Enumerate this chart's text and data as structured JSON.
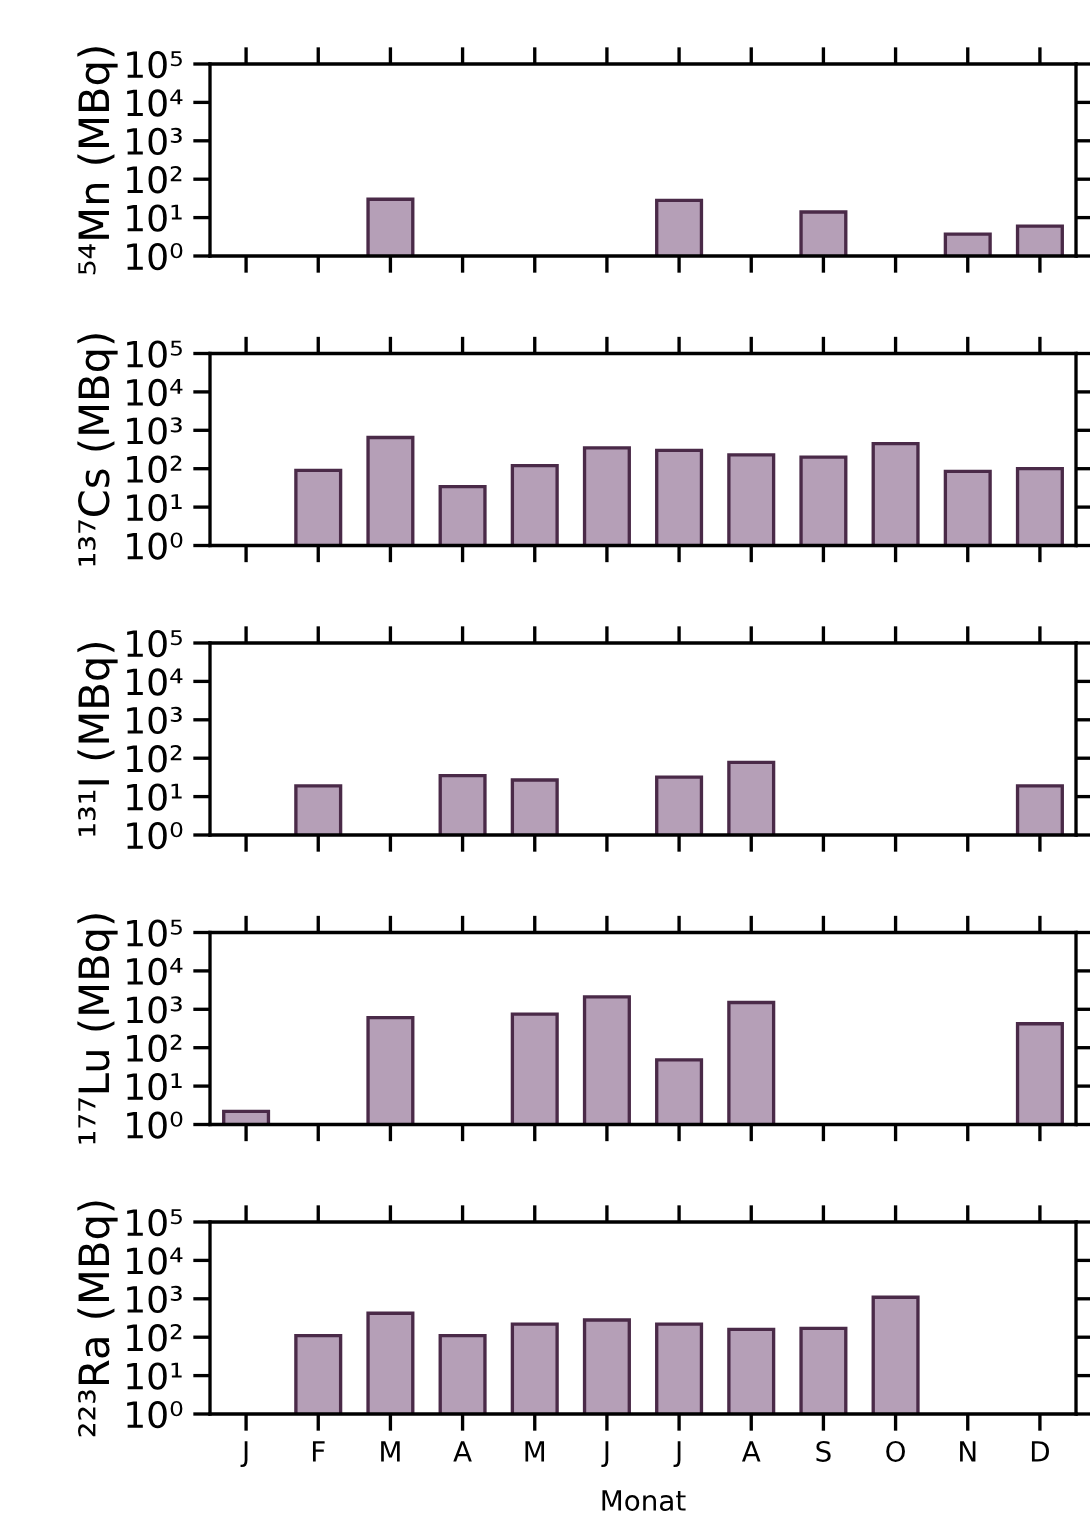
{
  "chart_data": [
    {
      "type": "bar",
      "ylabel": "⁵⁴Mn (MBq)",
      "log": "y",
      "categories": [
        null,
        null,
        null,
        null,
        null,
        null,
        null,
        null,
        null,
        null,
        null,
        null
      ],
      "values": [
        null,
        null,
        30,
        null,
        null,
        null,
        28,
        null,
        14,
        null,
        3.7,
        6
      ],
      "color": "#b59fb7",
      "ylim": [
        1,
        100000
      ],
      "yticks": [
        {
          "value": 1,
          "label": "10⁰"
        },
        {
          "value": 10,
          "label": "10¹"
        },
        {
          "value": 100,
          "label": "10²"
        },
        {
          "value": 1000,
          "label": "10³"
        },
        {
          "value": 10000,
          "label": "10⁴"
        },
        {
          "value": 100000,
          "label": "10⁵"
        }
      ],
      "grid": false,
      "legend": false
    },
    {
      "type": "bar",
      "ylabel": "¹³⁷Cs (MBq)",
      "log": "y",
      "categories": [
        null,
        null,
        null,
        null,
        null,
        null,
        null,
        null,
        null,
        null,
        null,
        null
      ],
      "values": [
        null,
        90,
        650,
        34,
        120,
        350,
        300,
        230,
        200,
        450,
        85,
        100
      ],
      "color": "#b59fb7",
      "ylim": [
        1,
        100000
      ],
      "yticks": [
        {
          "value": 1,
          "label": "10⁰"
        },
        {
          "value": 10,
          "label": "10¹"
        },
        {
          "value": 100,
          "label": "10²"
        },
        {
          "value": 1000,
          "label": "10³"
        },
        {
          "value": 10000,
          "label": "10⁴"
        },
        {
          "value": 100000,
          "label": "10⁵"
        }
      ],
      "grid": false,
      "legend": false
    },
    {
      "type": "bar",
      "ylabel": "¹³¹I (MBq)",
      "log": "y",
      "categories": [
        null,
        null,
        null,
        null,
        null,
        null,
        null,
        null,
        null,
        null,
        null,
        null
      ],
      "values": [
        null,
        19,
        null,
        35,
        27,
        null,
        32,
        78,
        null,
        null,
        null,
        19
      ],
      "color": "#b59fb7",
      "ylim": [
        1,
        100000
      ],
      "yticks": [
        {
          "value": 1,
          "label": "10⁰"
        },
        {
          "value": 10,
          "label": "10¹"
        },
        {
          "value": 100,
          "label": "10²"
        },
        {
          "value": 1000,
          "label": "10³"
        },
        {
          "value": 10000,
          "label": "10⁴"
        },
        {
          "value": 100000,
          "label": "10⁵"
        }
      ],
      "grid": false,
      "legend": false
    },
    {
      "type": "bar",
      "ylabel": "¹⁷⁷Lu (MBq)",
      "log": "y",
      "categories": [
        null,
        null,
        null,
        null,
        null,
        null,
        null,
        null,
        null,
        null,
        null,
        null
      ],
      "values": [
        2.2,
        null,
        610,
        null,
        750,
        2100,
        48,
        1500,
        null,
        null,
        null,
        420
      ],
      "color": "#b59fb7",
      "ylim": [
        1,
        100000
      ],
      "yticks": [
        {
          "value": 1,
          "label": "10⁰"
        },
        {
          "value": 10,
          "label": "10¹"
        },
        {
          "value": 100,
          "label": "10²"
        },
        {
          "value": 1000,
          "label": "10³"
        },
        {
          "value": 10000,
          "label": "10⁴"
        },
        {
          "value": 100000,
          "label": "10⁵"
        }
      ],
      "grid": false,
      "legend": false
    },
    {
      "type": "bar",
      "ylabel": "²²³Ra (MBq)",
      "xlabel": "Monat",
      "log": "y",
      "categories": [
        "J",
        "F",
        "M",
        "A",
        "M",
        "J",
        "J",
        "A",
        "S",
        "O",
        "N",
        "D"
      ],
      "values": [
        null,
        110,
        420,
        110,
        220,
        280,
        220,
        160,
        170,
        1100,
        null,
        null
      ],
      "color": "#b59fb7",
      "ylim": [
        1,
        100000
      ],
      "yticks": [
        {
          "value": 1,
          "label": "10⁰"
        },
        {
          "value": 10,
          "label": "10¹"
        },
        {
          "value": 100,
          "label": "10²"
        },
        {
          "value": 1000,
          "label": "10³"
        },
        {
          "value": 10000,
          "label": "10⁴"
        },
        {
          "value": 100000,
          "label": "10⁵"
        }
      ],
      "grid": false,
      "legend": false
    }
  ]
}
